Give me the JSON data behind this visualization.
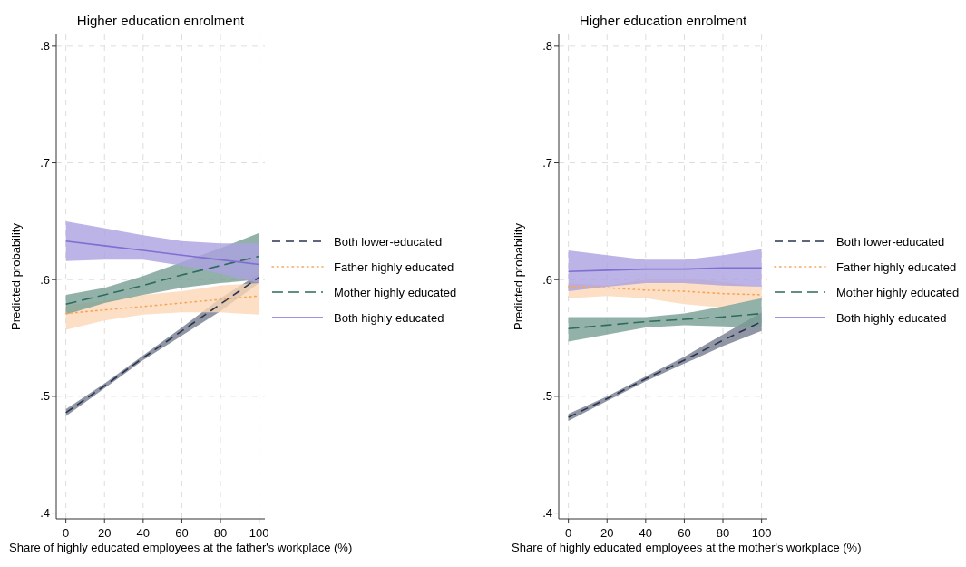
{
  "chart_data": [
    {
      "type": "line",
      "title": "Higher education enrolment",
      "xlabel": "Share of highly educated employees at the father's workplace (%)",
      "ylabel": "Predicted probability",
      "x": [
        0,
        20,
        40,
        60,
        80,
        100
      ],
      "xlim": [
        -5,
        103
      ],
      "xticks": [
        0,
        20,
        40,
        60,
        80,
        100
      ],
      "ylim": [
        0.395,
        0.81
      ],
      "yticks": [
        {
          "value": 0.4,
          "label": ".4"
        },
        {
          "value": 0.5,
          "label": ".5"
        },
        {
          "value": 0.6,
          "label": ".6"
        },
        {
          "value": 0.7,
          "label": ".7"
        },
        {
          "value": 0.8,
          "label": ".8"
        }
      ],
      "grid": true,
      "legend": "right",
      "series": [
        {
          "name": "Both lower-educated",
          "color": "#2a3550",
          "line_style": "dashed",
          "values": [
            0.486,
            0.509,
            0.533,
            0.556,
            0.579,
            0.602
          ],
          "lower": [
            0.483,
            0.507,
            0.531,
            0.552,
            0.573,
            0.597
          ],
          "upper": [
            0.489,
            0.511,
            0.535,
            0.559,
            0.584,
            0.605
          ]
        },
        {
          "name": "Father highly educated",
          "color": "#f5a65b",
          "line_style": "dotted",
          "values": [
            0.571,
            0.574,
            0.577,
            0.58,
            0.583,
            0.586
          ],
          "lower": [
            0.557,
            0.565,
            0.57,
            0.572,
            0.572,
            0.57
          ],
          "upper": [
            0.578,
            0.582,
            0.587,
            0.59,
            0.595,
            0.597
          ]
        },
        {
          "name": "Mother highly educated",
          "color": "#2e6b5a",
          "line_style": "dashed",
          "values": [
            0.579,
            0.587,
            0.595,
            0.604,
            0.612,
            0.62
          ],
          "lower": [
            0.57,
            0.58,
            0.587,
            0.593,
            0.597,
            0.6
          ],
          "upper": [
            0.587,
            0.593,
            0.603,
            0.615,
            0.627,
            0.64
          ]
        },
        {
          "name": "Both highly educated",
          "color": "#7e6fd0",
          "line_style": "solid",
          "values": [
            0.633,
            0.629,
            0.625,
            0.621,
            0.617,
            0.613
          ],
          "lower": [
            0.616,
            0.617,
            0.617,
            0.612,
            0.605,
            0.597
          ],
          "upper": [
            0.65,
            0.644,
            0.638,
            0.633,
            0.631,
            0.631
          ]
        }
      ]
    },
    {
      "type": "line",
      "title": "Higher education enrolment",
      "xlabel": "Share of highly educated employees at the mother's workplace (%)",
      "ylabel": "Predicted probability",
      "x": [
        0,
        20,
        40,
        60,
        80,
        100
      ],
      "xlim": [
        -5,
        103
      ],
      "xticks": [
        0,
        20,
        40,
        60,
        80,
        100
      ],
      "ylim": [
        0.395,
        0.81
      ],
      "yticks": [
        {
          "value": 0.4,
          "label": ".4"
        },
        {
          "value": 0.5,
          "label": ".5"
        },
        {
          "value": 0.6,
          "label": ".6"
        },
        {
          "value": 0.7,
          "label": ".7"
        },
        {
          "value": 0.8,
          "label": ".8"
        }
      ],
      "grid": true,
      "legend": "right",
      "series": [
        {
          "name": "Both lower-educated",
          "color": "#2a3550",
          "line_style": "dashed",
          "values": [
            0.482,
            0.498,
            0.515,
            0.531,
            0.548,
            0.564
          ],
          "lower": [
            0.479,
            0.496,
            0.513,
            0.528,
            0.543,
            0.556
          ],
          "upper": [
            0.485,
            0.5,
            0.517,
            0.534,
            0.553,
            0.572
          ]
        },
        {
          "name": "Father highly educated",
          "color": "#f5a65b",
          "line_style": "dotted",
          "values": [
            0.594,
            0.593,
            0.591,
            0.59,
            0.588,
            0.587
          ],
          "lower": [
            0.584,
            0.586,
            0.584,
            0.579,
            0.576,
            0.584
          ],
          "upper": [
            0.597,
            0.595,
            0.6,
            0.601,
            0.598,
            0.594
          ]
        },
        {
          "name": "Mother highly educated",
          "color": "#2e6b5a",
          "line_style": "dashed",
          "values": [
            0.558,
            0.561,
            0.564,
            0.566,
            0.568,
            0.571
          ],
          "lower": [
            0.547,
            0.553,
            0.559,
            0.561,
            0.56,
            0.559
          ],
          "upper": [
            0.568,
            0.568,
            0.568,
            0.571,
            0.577,
            0.584
          ]
        },
        {
          "name": "Both highly educated",
          "color": "#7e6fd0",
          "line_style": "solid",
          "values": [
            0.607,
            0.608,
            0.609,
            0.609,
            0.61,
            0.61
          ],
          "lower": [
            0.59,
            0.594,
            0.597,
            0.597,
            0.595,
            0.594
          ],
          "upper": [
            0.625,
            0.621,
            0.617,
            0.617,
            0.621,
            0.626
          ]
        }
      ]
    }
  ]
}
